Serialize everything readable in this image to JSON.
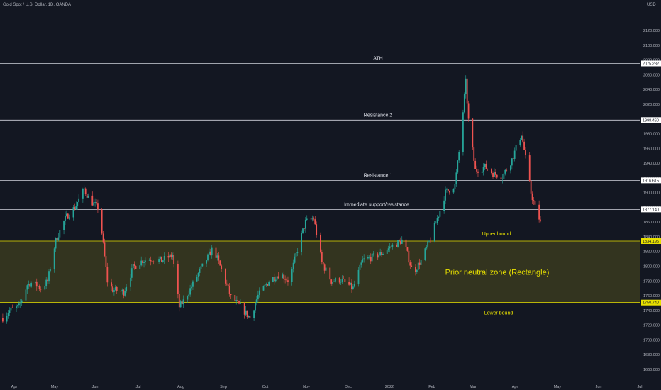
{
  "header": {
    "symbol": "Gold Spot / U.S. Dollar, 1D, OANDA",
    "currency": "USD"
  },
  "colors": {
    "background": "#131722",
    "up": "#26a69a",
    "down": "#ef5350",
    "line": "#d1d4dc",
    "zone_line": "#e8e000",
    "zone_fill": "#3a3a1e",
    "zone_text": "#e8e000",
    "axis_text": "#b2b5be"
  },
  "chart_data": {
    "type": "candlestick",
    "title": "Gold Spot / U.S. Dollar, 1D, OANDA",
    "ylabel": "USD",
    "ylim": [
      1640,
      2120
    ],
    "y_ticks": [
      1660,
      1680,
      1700,
      1720,
      1740,
      1760,
      1780,
      1800,
      1820,
      1840,
      1860,
      1880,
      1900,
      1920,
      1940,
      1960,
      1980,
      2000,
      2020,
      2040,
      2060,
      2080,
      2100,
      2120
    ],
    "x_ticks": [
      "Apr",
      "May",
      "Jun",
      "Jul",
      "Aug",
      "Sep",
      "Oct",
      "Nov",
      "Dec",
      "2022",
      "Feb",
      "Mar",
      "Apr",
      "May",
      "Jun",
      "Jul"
    ],
    "horizontal_lines": [
      {
        "label": "ATH",
        "value": 2075.282,
        "value_label": "2075.282"
      },
      {
        "label": "Resistance 2",
        "value": 1998.46,
        "value_label": "1998.460"
      },
      {
        "label": "Resistance 1",
        "value": 1916.615,
        "value_label": "1916.615"
      },
      {
        "label": "Immediate support/resistance",
        "value": 1877.14,
        "value_label": "1877.140"
      }
    ],
    "zone": {
      "label": "Prior neutral zone (Rectangle)",
      "upper": {
        "label": "Upper bound",
        "value": 1834.195,
        "value_label": "1834.195"
      },
      "lower": {
        "label": "Lower bound",
        "value": 1750.74,
        "value_label": "1750.740"
      }
    },
    "approx_close_path": [
      {
        "date": "Apr 1",
        "close": 1730
      },
      {
        "date": "Apr 6",
        "close": 1740
      },
      {
        "date": "Apr 13",
        "close": 1745
      },
      {
        "date": "Apr 19",
        "close": 1775
      },
      {
        "date": "Apr 23",
        "close": 1778
      },
      {
        "date": "Apr 29",
        "close": 1770
      },
      {
        "date": "May 4",
        "close": 1780
      },
      {
        "date": "May 10",
        "close": 1835
      },
      {
        "date": "May 17",
        "close": 1865
      },
      {
        "date": "May 24",
        "close": 1880
      },
      {
        "date": "May 31",
        "close": 1905
      },
      {
        "date": "Jun 4",
        "close": 1890
      },
      {
        "date": "Jun 11",
        "close": 1878
      },
      {
        "date": "Jun 17",
        "close": 1780
      },
      {
        "date": "Jun 21",
        "close": 1768
      },
      {
        "date": "Jun 29",
        "close": 1765
      },
      {
        "date": "Jul 6",
        "close": 1798
      },
      {
        "date": "Jul 13",
        "close": 1808
      },
      {
        "date": "Jul 20",
        "close": 1810
      },
      {
        "date": "Jul 27",
        "close": 1808
      },
      {
        "date": "Aug 4",
        "close": 1815
      },
      {
        "date": "Aug 9",
        "close": 1745
      },
      {
        "date": "Aug 13",
        "close": 1755
      },
      {
        "date": "Aug 23",
        "close": 1790
      },
      {
        "date": "Sep 3",
        "close": 1825
      },
      {
        "date": "Sep 9",
        "close": 1795
      },
      {
        "date": "Sep 16",
        "close": 1758
      },
      {
        "date": "Sep 23",
        "close": 1745
      },
      {
        "date": "Sep 30",
        "close": 1730
      },
      {
        "date": "Oct 6",
        "close": 1760
      },
      {
        "date": "Oct 14",
        "close": 1780
      },
      {
        "date": "Oct 22",
        "close": 1790
      },
      {
        "date": "Oct 29",
        "close": 1780
      },
      {
        "date": "Nov 5",
        "close": 1830
      },
      {
        "date": "Nov 10",
        "close": 1860
      },
      {
        "date": "Nov 16",
        "close": 1865
      },
      {
        "date": "Nov 22",
        "close": 1805
      },
      {
        "date": "Nov 29",
        "close": 1780
      },
      {
        "date": "Dec 6",
        "close": 1782
      },
      {
        "date": "Dec 15",
        "close": 1770
      },
      {
        "date": "Dec 22",
        "close": 1808
      },
      {
        "date": "Jan 4",
        "close": 1816
      },
      {
        "date": "Jan 12",
        "close": 1827
      },
      {
        "date": "Jan 21",
        "close": 1836
      },
      {
        "date": "Jan 28",
        "close": 1790
      },
      {
        "date": "Feb 3",
        "close": 1808
      },
      {
        "date": "Feb 10",
        "close": 1837
      },
      {
        "date": "Feb 16",
        "close": 1870
      },
      {
        "date": "Feb 21",
        "close": 1900
      },
      {
        "date": "Feb 28",
        "close": 1910
      },
      {
        "date": "Mar 4",
        "close": 1970
      },
      {
        "date": "Mar 8",
        "close": 2050
      },
      {
        "date": "Mar 10",
        "close": 1998
      },
      {
        "date": "Mar 15",
        "close": 1930
      },
      {
        "date": "Mar 22",
        "close": 1935
      },
      {
        "date": "Mar 29",
        "close": 1925
      },
      {
        "date": "Apr 4",
        "close": 1922
      },
      {
        "date": "Apr 11",
        "close": 1945
      },
      {
        "date": "Apr 18",
        "close": 1980
      },
      {
        "date": "Apr 20",
        "close": 1958
      },
      {
        "date": "Apr 25",
        "close": 1900
      },
      {
        "date": "Apr 28",
        "close": 1880
      },
      {
        "date": "May 2",
        "close": 1860
      }
    ]
  }
}
